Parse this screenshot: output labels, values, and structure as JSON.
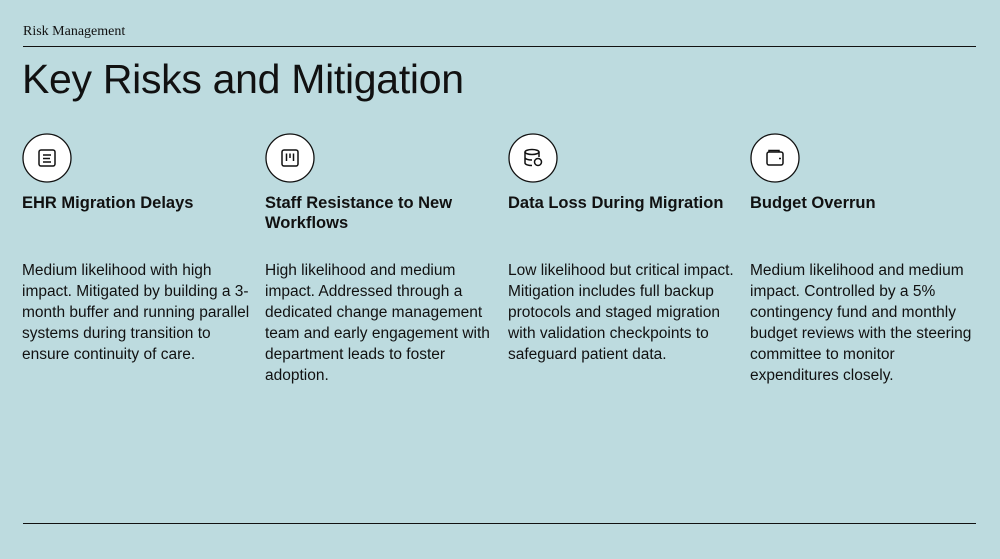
{
  "header": {
    "label": "Risk Management",
    "title": "Key Risks and Mitigation"
  },
  "cards": [
    {
      "title": "EHR Migration Delays",
      "body": "Medium likelihood with high impact. Mitigated by building a 3-month buffer and running parallel systems during transition to ensure continuity of care."
    },
    {
      "title": "Staff Resistance to New Workflows",
      "body": "High likelihood and medium impact. Addressed through a dedicated change management team and early engagement with department leads to foster adoption."
    },
    {
      "title": "Data Loss During Migration",
      "body": "Low likelihood but critical impact. Mitigation includes full backup protocols and staged migration with validation checkpoints to safeguard patient data."
    },
    {
      "title": "Budget Overrun",
      "body": "Medium likelihood and medium impact. Controlled by a 5% contingency fund and monthly budget reviews with the steering committee to monitor expenditures closely."
    }
  ]
}
